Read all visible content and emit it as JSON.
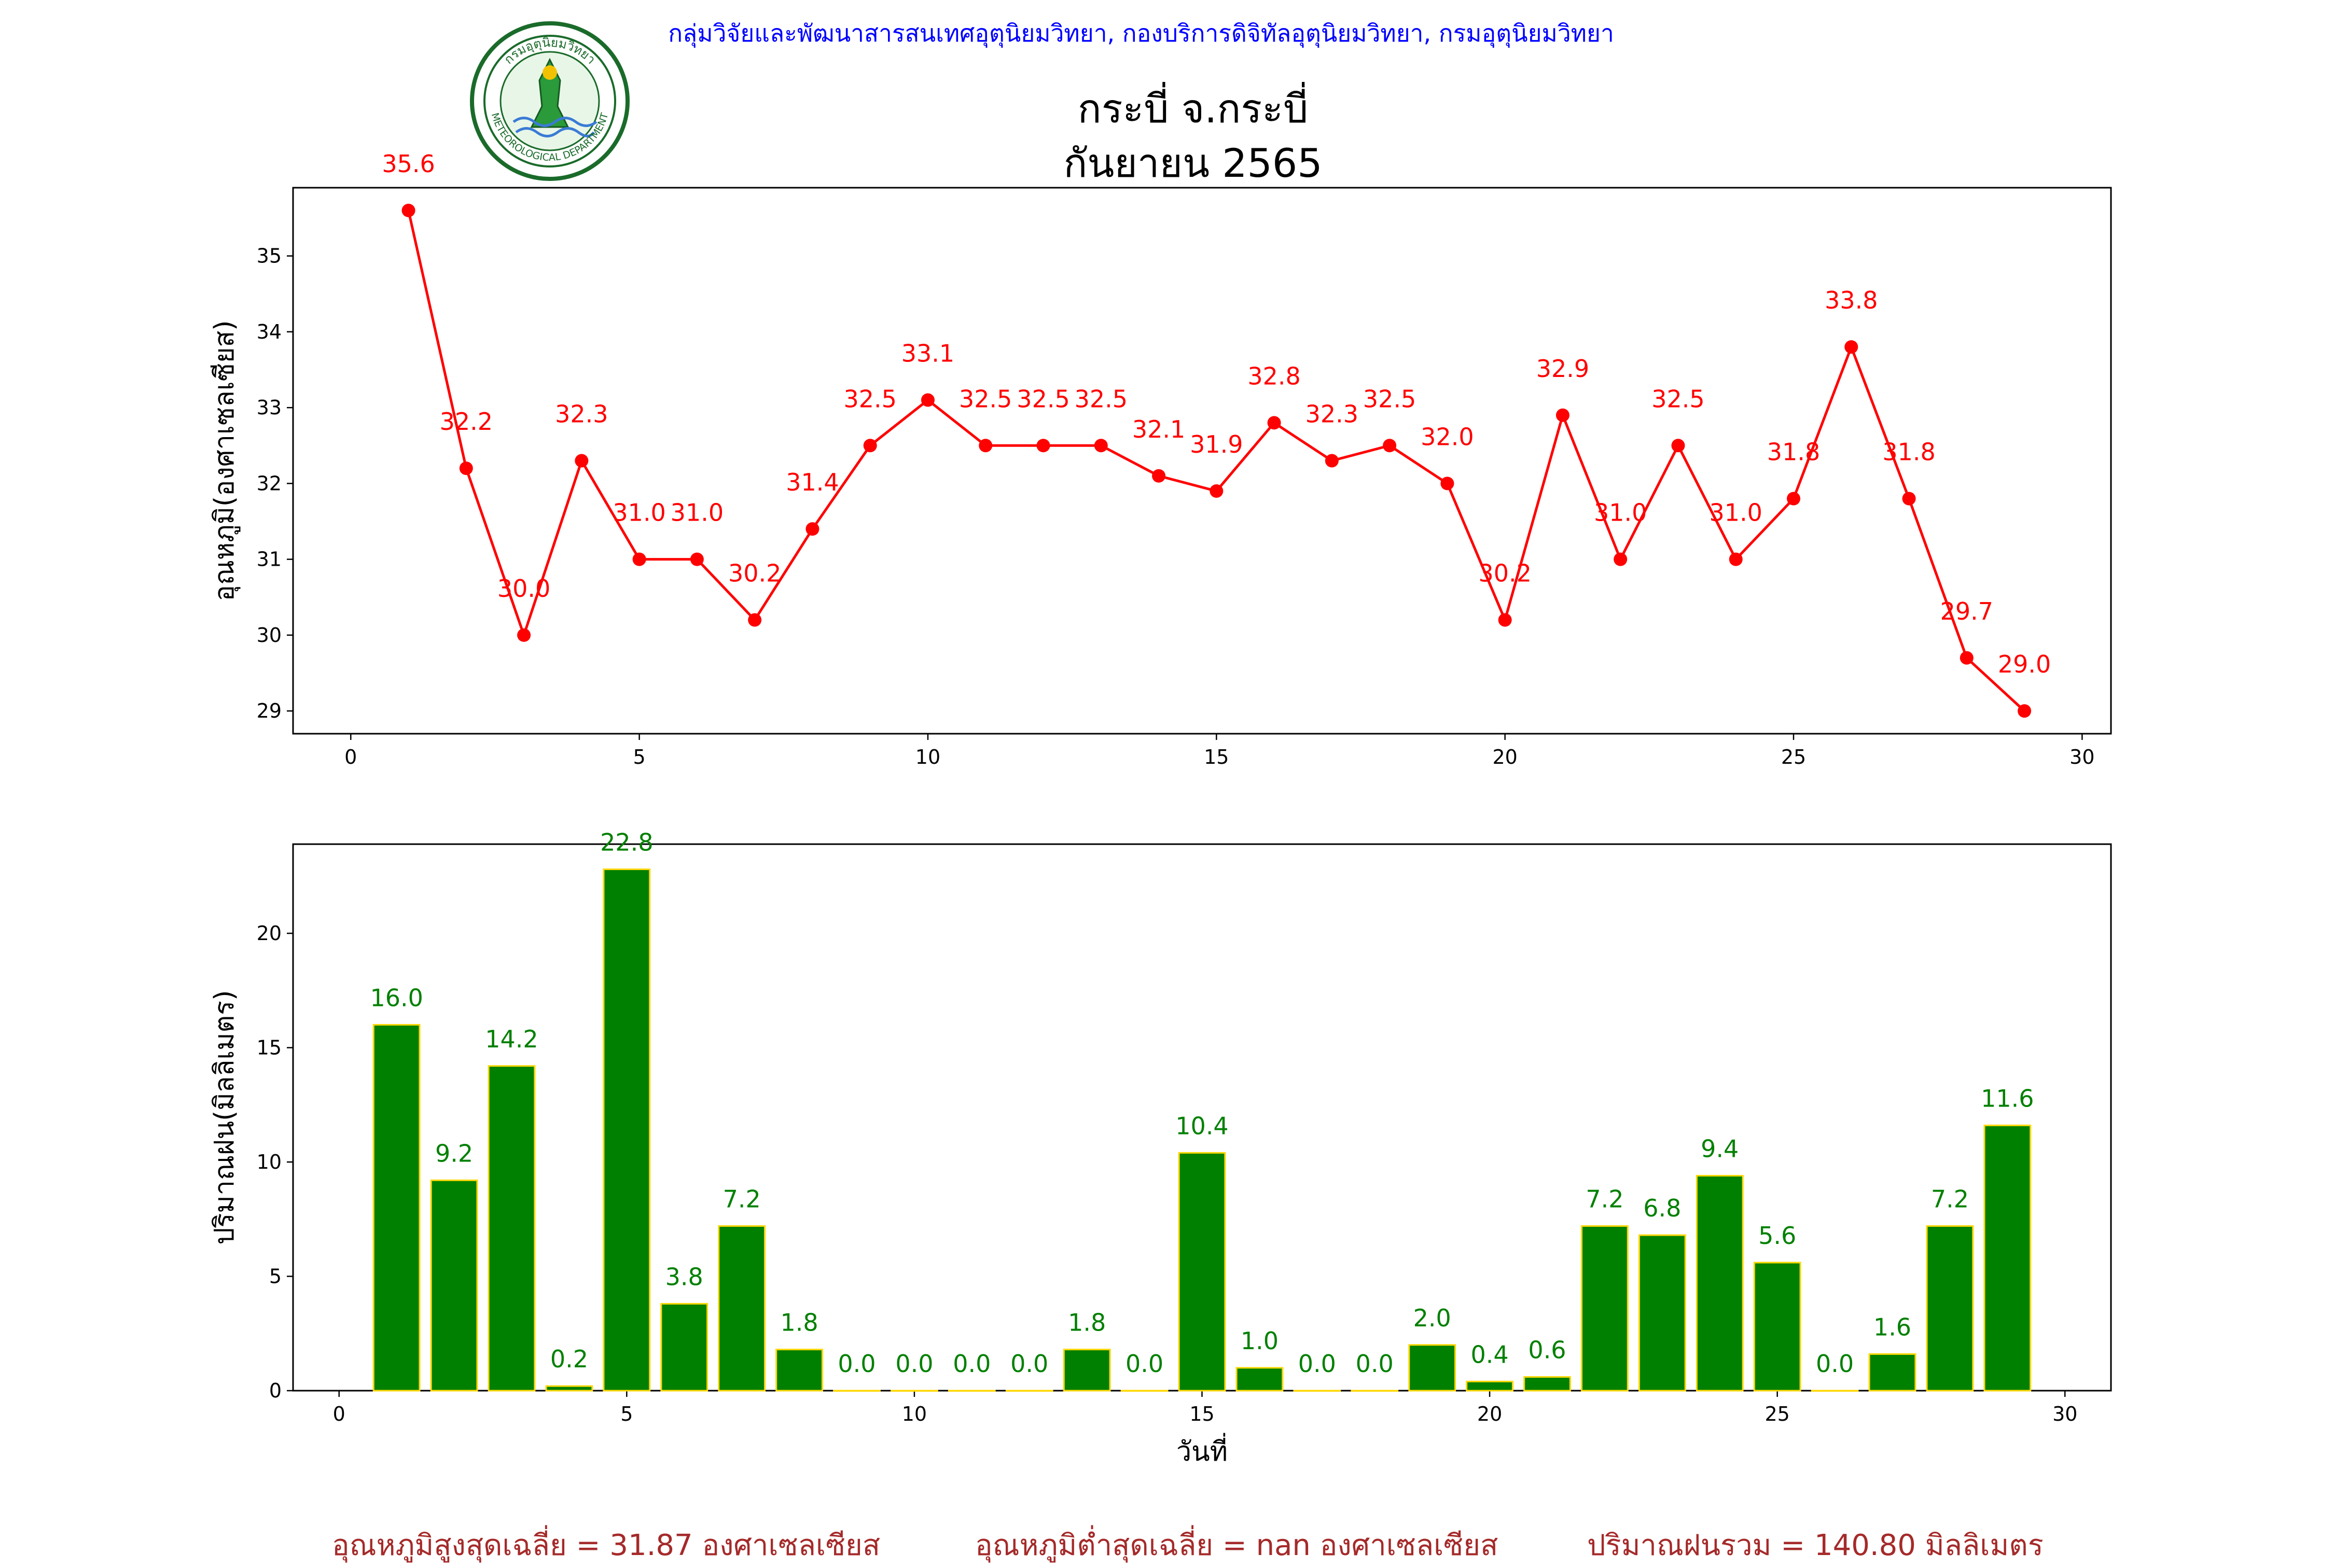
{
  "header": {
    "department": "กลุ่มวิจัยและพัฒนาสารสนเทศอุตุนิยมวิทยา, กองบริการดิจิทัลอุตุนิยมวิทยา, กรมอุตุนิยมวิทยา",
    "title_line1": "กระบี่ จ.กระบี่",
    "title_line2": "กันยายน 2565",
    "logo_text_top": "กรมอุตุนิยมวิทยา",
    "logo_text_bottom": "METEOROLOGICAL DEPARTMENT"
  },
  "footer": {
    "avg_max_temp": "อุณหภูมิสูงสุดเฉลี่ย = 31.87 องศาเซลเซียส",
    "avg_min_temp": "อุณหภูมิต่ำสุดเฉลี่ย = nan องศาเซลเซียส",
    "total_rain": "ปริมาณฝนรวม = 140.80 มิลลิเมตร"
  },
  "colors": {
    "temp_line": "#ff0000",
    "rain_bar": "#008000",
    "rain_edge": "#ffd700",
    "header_text": "#0000ff",
    "footer_text": "#a52a2a"
  },
  "chart_data": [
    {
      "type": "line",
      "ylabel": "อุณหภูมิ(องศาเซลเซียส)",
      "xlabel": "",
      "xlim": [
        -1,
        30.5
      ],
      "ylim": [
        28.7,
        35.9
      ],
      "xticks": [
        0,
        5,
        10,
        15,
        20,
        25,
        30
      ],
      "yticks": [
        29,
        30,
        31,
        32,
        33,
        34,
        35
      ],
      "grid": false,
      "x": [
        1,
        2,
        3,
        4,
        5,
        6,
        7,
        8,
        9,
        10,
        11,
        12,
        13,
        14,
        15,
        16,
        17,
        18,
        19,
        20,
        21,
        22,
        23,
        24,
        25,
        26,
        27,
        28,
        29
      ],
      "y": [
        35.6,
        32.2,
        30.0,
        32.3,
        31.0,
        31.0,
        30.2,
        31.4,
        32.5,
        33.1,
        32.5,
        32.5,
        32.5,
        32.1,
        31.9,
        32.8,
        32.3,
        32.5,
        32.0,
        30.2,
        32.9,
        31.0,
        32.5,
        31.0,
        31.8,
        33.8,
        31.8,
        29.7,
        29.0
      ],
      "labels": [
        "35.6",
        "32.2",
        "30.0",
        "32.3",
        "31.0",
        "31.0",
        "30.2",
        "31.4",
        "32.5",
        "33.1",
        "32.5",
        "32.5",
        "32.5",
        "32.1",
        "31.9",
        "32.8",
        "32.3",
        "32.5",
        "32.0",
        "30.2",
        "32.9",
        "31.0",
        "32.5",
        "31.0",
        "31.8",
        "33.8",
        "31.8",
        "29.7",
        "29.0"
      ]
    },
    {
      "type": "bar",
      "ylabel": "ปริมาณฝน(มิลลิเมตร)",
      "xlabel": "วันที่",
      "xlim": [
        -0.8,
        30.8
      ],
      "ylim": [
        0,
        23.9
      ],
      "xticks": [
        0,
        5,
        10,
        15,
        20,
        25,
        30
      ],
      "yticks": [
        0,
        5,
        10,
        15,
        20
      ],
      "grid": false,
      "x": [
        1,
        2,
        3,
        4,
        5,
        6,
        7,
        8,
        9,
        10,
        11,
        12,
        13,
        14,
        15,
        16,
        17,
        18,
        19,
        20,
        21,
        22,
        23,
        24,
        25,
        26,
        27,
        28,
        29
      ],
      "values": [
        16.0,
        9.2,
        14.2,
        0.2,
        22.8,
        3.8,
        7.2,
        1.8,
        0.0,
        0.0,
        0.0,
        0.0,
        1.8,
        0.0,
        10.4,
        1.0,
        0.0,
        0.0,
        2.0,
        0.4,
        0.6,
        7.2,
        6.8,
        9.4,
        5.6,
        0.0,
        1.6,
        7.2,
        11.6
      ],
      "labels": [
        "16.0",
        "9.2",
        "14.2",
        "0.2",
        "22.8",
        "3.8",
        "7.2",
        "1.8",
        "0.0",
        "0.0",
        "0.0",
        "0.0",
        "1.8",
        "0.0",
        "10.4",
        "1.0",
        "0.0",
        "0.0",
        "2.0",
        "0.4",
        "0.6",
        "7.2",
        "6.8",
        "9.4",
        "5.6",
        "0.0",
        "1.6",
        "7.2",
        "11.6"
      ]
    }
  ]
}
